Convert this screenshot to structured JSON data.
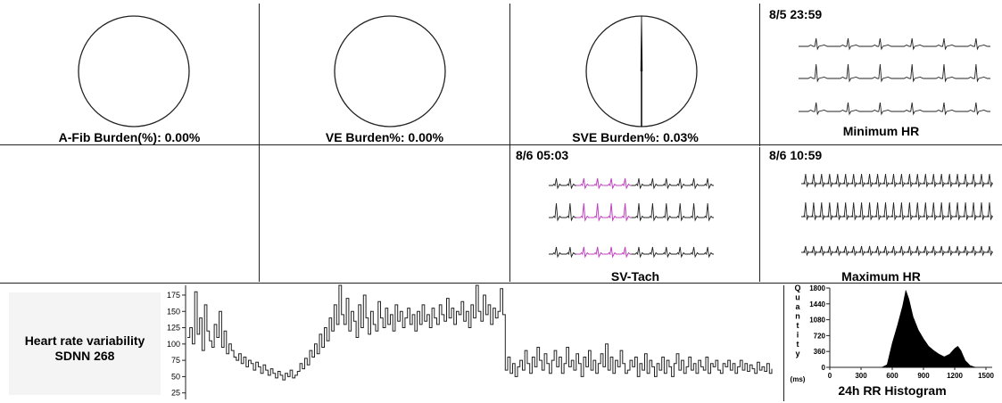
{
  "panels": {
    "afib": {
      "label": "A-Fib Burden(%): 0.00%",
      "percent": 0.0
    },
    "ve": {
      "label": "VE Burden%: 0.00%",
      "percent": 0.0
    },
    "sve": {
      "label": "SVE Burden%: 0.03%",
      "percent": 0.03
    },
    "min_hr": {
      "timestamp": "8/5 23:59",
      "label": "Minimum HR"
    },
    "sv_tach": {
      "timestamp": "8/6 05:03",
      "label": "SV-Tach"
    },
    "max_hr": {
      "timestamp": "8/6 10:59",
      "label": "Maximum HR"
    },
    "hrv": {
      "title": "Heart rate variability",
      "value": "SDNN 268"
    },
    "histogram": {
      "title": "24h RR Histogram"
    }
  },
  "chart_data": [
    {
      "type": "line",
      "name": "hrv-trend",
      "yticks": [
        175,
        150,
        125,
        100,
        75,
        50,
        25
      ],
      "ylim": [
        15,
        190
      ],
      "step": true,
      "x": [
        0,
        1,
        2,
        3,
        4,
        5,
        6,
        7,
        8,
        9,
        10,
        11,
        12,
        13,
        14,
        15,
        16,
        17,
        18,
        19,
        20,
        21,
        22,
        23,
        24,
        25,
        26,
        27,
        28,
        29,
        30,
        31,
        32,
        33,
        34,
        35,
        36,
        37,
        38,
        39,
        40,
        41,
        42,
        43,
        44,
        45,
        46,
        47,
        48,
        49,
        50,
        51,
        52,
        53,
        54,
        55,
        56,
        57,
        58,
        59,
        60,
        61,
        62,
        63,
        64,
        65,
        66,
        67,
        68,
        69,
        70,
        71,
        72,
        73,
        74,
        75,
        76,
        77,
        78,
        79,
        80,
        81,
        82,
        83,
        84,
        85,
        86,
        87,
        88,
        89,
        90,
        91,
        92,
        93,
        94,
        95,
        96,
        97,
        98,
        99,
        100,
        101,
        102,
        103,
        104,
        105,
        106,
        107,
        108,
        109,
        110,
        111,
        112,
        113,
        114,
        115,
        116,
        117,
        118,
        119,
        120,
        121,
        122,
        123,
        124,
        125,
        126,
        127,
        128,
        129,
        130,
        131,
        132,
        133,
        134,
        135,
        136,
        137,
        138,
        139,
        140,
        141,
        142,
        143,
        144,
        145,
        146,
        147,
        148,
        149,
        150,
        151,
        152,
        153,
        154,
        155,
        156,
        157,
        158,
        159,
        160,
        161,
        162,
        163,
        164,
        165,
        166,
        167,
        168,
        169,
        170,
        171,
        172,
        173,
        174,
        175,
        176,
        177,
        178,
        179,
        180,
        181,
        182,
        183,
        184,
        185,
        186,
        187,
        188,
        189,
        190,
        191,
        192,
        193,
        194,
        195,
        196,
        197,
        198,
        199,
        200,
        201,
        202,
        203,
        204,
        205,
        206,
        207,
        208,
        209,
        210,
        211,
        212,
        213,
        214,
        215,
        216,
        217,
        218,
        219,
        220,
        221,
        222,
        223,
        224,
        225,
        226,
        227,
        228,
        229,
        230,
        231,
        232,
        233,
        234,
        235,
        236,
        237,
        238,
        239
      ],
      "y": [
        110,
        125,
        100,
        180,
        115,
        140,
        90,
        160,
        120,
        105,
        95,
        130,
        110,
        150,
        95,
        120,
        85,
        100,
        90,
        80,
        75,
        85,
        70,
        80,
        65,
        75,
        70,
        60,
        72,
        65,
        55,
        68,
        60,
        52,
        62,
        55,
        48,
        58,
        52,
        45,
        55,
        50,
        60,
        48,
        52,
        58,
        70,
        62,
        78,
        68,
        90,
        80,
        100,
        85,
        115,
        95,
        125,
        105,
        140,
        120,
        160,
        130,
        190,
        145,
        130,
        170,
        120,
        150,
        135,
        110,
        160,
        125,
        175,
        140,
        115,
        150,
        130,
        120,
        165,
        140,
        125,
        155,
        130,
        145,
        120,
        160,
        135,
        150,
        125,
        140,
        155,
        130,
        145,
        120,
        150,
        130,
        160,
        135,
        145,
        125,
        155,
        140,
        130,
        160,
        145,
        135,
        170,
        140,
        155,
        130,
        150,
        145,
        165,
        135,
        150,
        125,
        160,
        140,
        190,
        150,
        135,
        175,
        145,
        160,
        130,
        155,
        140,
        150,
        185,
        145,
        60,
        80,
        55,
        70,
        50,
        65,
        75,
        60,
        90,
        70,
        55,
        80,
        65,
        95,
        75,
        60,
        85,
        70,
        55,
        75,
        90,
        65,
        80,
        55,
        70,
        95,
        65,
        75,
        60,
        85,
        70,
        50,
        80,
        65,
        90,
        60,
        75,
        55,
        70,
        85,
        65,
        100,
        60,
        80,
        55,
        75,
        65,
        90,
        70,
        55,
        60,
        75,
        65,
        80,
        50,
        70,
        60,
        85,
        55,
        75,
        65,
        50,
        70,
        60,
        80,
        55,
        75,
        65,
        50,
        70,
        85,
        60,
        75,
        55,
        65,
        80,
        60,
        70,
        55,
        75,
        65,
        60,
        80,
        55,
        70,
        65,
        75,
        60,
        55,
        70,
        65,
        75,
        60,
        70,
        55,
        65,
        75,
        60,
        70,
        58,
        68,
        62,
        55,
        72,
        60,
        65,
        58,
        70,
        55,
        62
      ]
    },
    {
      "type": "area",
      "name": "rr-histogram",
      "xlabel": "(ms)",
      "ylabel": "Quantity",
      "xticks": [
        0,
        300,
        600,
        900,
        1200,
        1500
      ],
      "yticks": [
        0,
        360,
        720,
        1080,
        1440,
        1800
      ],
      "xlim": [
        0,
        1560
      ],
      "ylim": [
        0,
        1800
      ],
      "x": [
        500,
        550,
        600,
        650,
        700,
        730,
        760,
        800,
        850,
        900,
        950,
        1000,
        1050,
        1100,
        1150,
        1200,
        1230,
        1260,
        1300,
        1350,
        1400
      ],
      "y": [
        0,
        60,
        550,
        950,
        1400,
        1750,
        1550,
        1150,
        850,
        650,
        480,
        380,
        300,
        240,
        300,
        430,
        480,
        380,
        160,
        40,
        0
      ]
    }
  ]
}
